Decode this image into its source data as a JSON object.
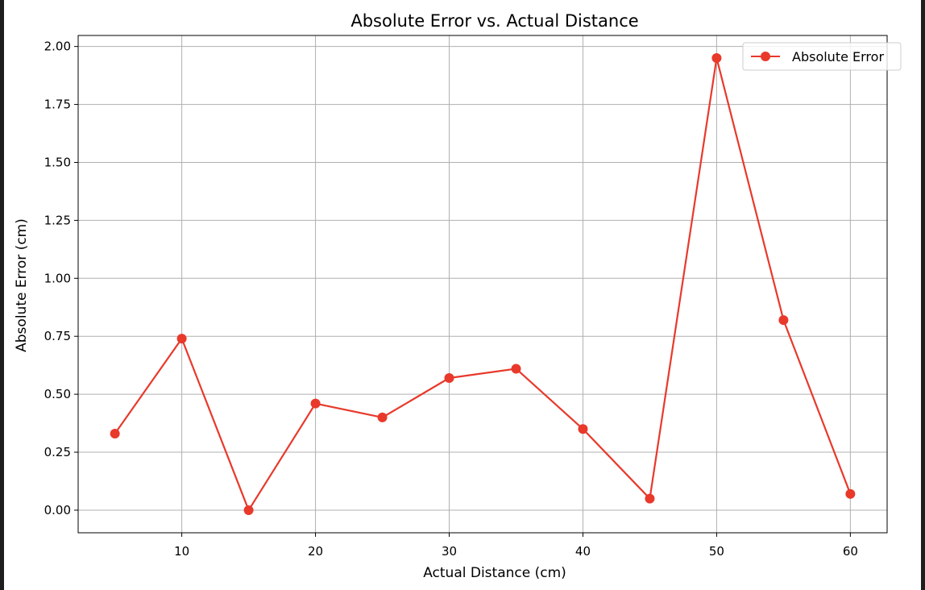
{
  "chart_data": {
    "type": "line",
    "title": "Absolute Error vs. Actual Distance",
    "xlabel": "Actual Distance (cm)",
    "ylabel": "Absolute Error (cm)",
    "xlim": [
      2.25,
      62.75
    ],
    "ylim": [
      -0.0975,
      2.0475
    ],
    "xticks": [
      10,
      20,
      30,
      40,
      50,
      60
    ],
    "xtick_labels": [
      "10",
      "20",
      "30",
      "40",
      "50",
      "60"
    ],
    "yticks": [
      0,
      0.25,
      0.5,
      0.75,
      1.0,
      1.25,
      1.5,
      1.75,
      2.0
    ],
    "ytick_labels": [
      "0.00",
      "0.25",
      "0.50",
      "0.75",
      "1.00",
      "1.25",
      "1.50",
      "1.75",
      "2.00"
    ],
    "grid": true,
    "legend_position": "top-right",
    "series": [
      {
        "name": "Absolute Error",
        "color": "#e8392b",
        "marker": "circle",
        "x": [
          5,
          10,
          15,
          20,
          25,
          30,
          35,
          40,
          45,
          50,
          55,
          60
        ],
        "y": [
          0.33,
          0.74,
          0.0,
          0.46,
          0.4,
          0.57,
          0.61,
          0.35,
          0.05,
          1.95,
          0.82,
          0.07
        ]
      }
    ]
  }
}
